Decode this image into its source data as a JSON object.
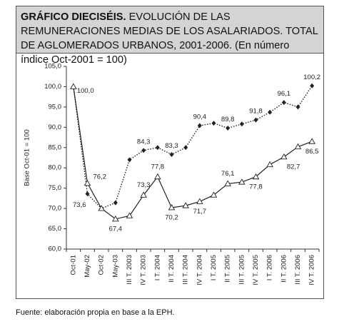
{
  "chart_data": {
    "type": "line",
    "title_lead": "GRÁFICO DIECISÉIS.",
    "title": "EVOLUCIÓN DE LAS REMUNERACIONES MEDIAS DE LOS ASALARIADOS. TOTAL DE AGLOMERADOS URBANOS, 2001-2006. (En número índice Oct-2001 = 100)",
    "y_label": "Base Oct-01 = 100",
    "source": "Fuente: elaboración propia en base a la EPH.",
    "categories": [
      "Oct-01",
      "May-02",
      "Oct-02",
      "May-03",
      "III T. 2003",
      "IV T. 2003",
      "I T. 2004",
      "II T. 2004",
      "III T. 2004",
      "IV T. 2004",
      "I T. 2005",
      "II T. 2005",
      "III T. 2005",
      "IV T. 2005",
      "I T. 2006",
      "II T. 2006",
      "III T. 2006",
      "IV T. 2006"
    ],
    "series": [
      {
        "color": "#222222",
        "line": "dotted",
        "marker": "diamond",
        "values": [
          100.0,
          73.6,
          70.0,
          71.4,
          82.0,
          84.3,
          85.0,
          83.3,
          85.0,
          90.4,
          91.0,
          89.8,
          90.8,
          91.8,
          93.7,
          96.1,
          95.0,
          100.2
        ],
        "value_labels": [
          "100,0",
          "73,6",
          null,
          null,
          null,
          "84,3",
          null,
          "83,3",
          null,
          "90,4",
          null,
          "89,8",
          null,
          "91,8",
          null,
          "96,1",
          null,
          "100,2"
        ]
      },
      {
        "color": "#222222",
        "line": "solid",
        "marker": "triangle",
        "values": [
          100.0,
          76.2,
          70.0,
          67.4,
          68.2,
          73.3,
          77.8,
          70.2,
          70.7,
          71.7,
          73.3,
          76.1,
          76.5,
          77.8,
          80.8,
          82.7,
          85.2,
          86.5
        ],
        "value_labels": [
          null,
          "76,2",
          null,
          "67,4",
          null,
          "73,3",
          "77,8",
          "70,2",
          null,
          "71,7",
          null,
          "76,1",
          null,
          "77,8",
          null,
          "82,7",
          null,
          "86,5"
        ]
      }
    ],
    "ylim": [
      60,
      105
    ],
    "yticks": [
      {
        "value": 60,
        "label": "60,0"
      },
      {
        "value": 65,
        "label": "65,0"
      },
      {
        "value": 70,
        "label": "70,0"
      },
      {
        "value": 75,
        "label": "75,0"
      },
      {
        "value": 80,
        "label": "80,0"
      },
      {
        "value": 85,
        "label": "85,0"
      },
      {
        "value": 90,
        "label": "90,0"
      },
      {
        "value": 95,
        "label": "95,0"
      },
      {
        "value": 100,
        "label": "100,0"
      },
      {
        "value": 105,
        "label": "105,0"
      }
    ],
    "grid": false
  }
}
